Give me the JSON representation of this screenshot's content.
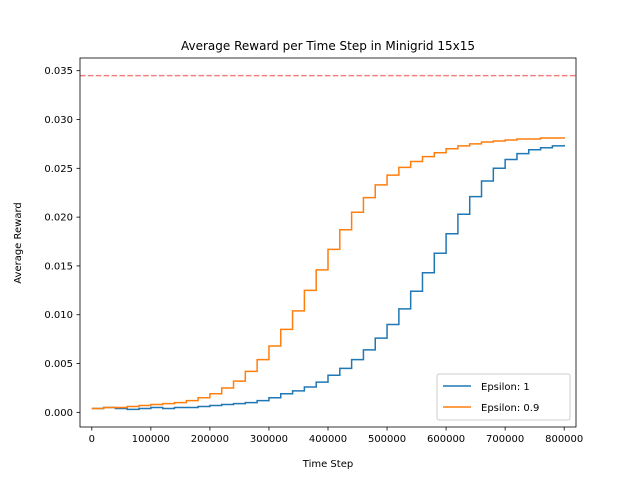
{
  "chart_data": {
    "type": "line",
    "title": "Average Reward per Time Step in Minigrid 15x15",
    "xlabel": "Time Step",
    "ylabel": "Average Reward",
    "xlim": [
      -20000,
      820000
    ],
    "ylim": [
      -0.0015,
      0.0363
    ],
    "x_ticks": [
      0,
      100000,
      200000,
      300000,
      400000,
      500000,
      600000,
      700000,
      800000
    ],
    "y_ticks": [
      0.0,
      0.005,
      0.01,
      0.015,
      0.02,
      0.025,
      0.03,
      0.035
    ],
    "y_tick_labels": [
      "0.000",
      "0.005",
      "0.010",
      "0.015",
      "0.020",
      "0.025",
      "0.030",
      "0.035"
    ],
    "grid": false,
    "legend_position": "lower-right",
    "reference_line": {
      "y": 0.0345,
      "color": "#f08080",
      "style": "dashed"
    },
    "series": [
      {
        "name": "Epsilon: 1",
        "color": "#1f77b4",
        "points": [
          [
            0,
            0.0004
          ],
          [
            20000,
            0.0005
          ],
          [
            40000,
            0.0004
          ],
          [
            60000,
            0.0003
          ],
          [
            80000,
            0.0004
          ],
          [
            100000,
            0.0005
          ],
          [
            120000,
            0.0004
          ],
          [
            140000,
            0.0005
          ],
          [
            160000,
            0.0005
          ],
          [
            180000,
            0.0006
          ],
          [
            200000,
            0.0007
          ],
          [
            220000,
            0.0008
          ],
          [
            240000,
            0.0009
          ],
          [
            260000,
            0.001
          ],
          [
            280000,
            0.0012
          ],
          [
            300000,
            0.0015
          ],
          [
            320000,
            0.0019
          ],
          [
            340000,
            0.0022
          ],
          [
            360000,
            0.0026
          ],
          [
            380000,
            0.0031
          ],
          [
            400000,
            0.0038
          ],
          [
            420000,
            0.0045
          ],
          [
            440000,
            0.0054
          ],
          [
            460000,
            0.0064
          ],
          [
            480000,
            0.0076
          ],
          [
            500000,
            0.009
          ],
          [
            520000,
            0.0106
          ],
          [
            540000,
            0.0124
          ],
          [
            560000,
            0.0143
          ],
          [
            580000,
            0.0163
          ],
          [
            600000,
            0.0183
          ],
          [
            620000,
            0.0203
          ],
          [
            640000,
            0.0221
          ],
          [
            660000,
            0.0237
          ],
          [
            680000,
            0.025
          ],
          [
            700000,
            0.0259
          ],
          [
            720000,
            0.0265
          ],
          [
            740000,
            0.0269
          ],
          [
            760000,
            0.0271
          ],
          [
            780000,
            0.0273
          ],
          [
            800000,
            0.0274
          ]
        ]
      },
      {
        "name": "Epsilon: 0.9",
        "color": "#ff7f0e",
        "points": [
          [
            0,
            0.0004
          ],
          [
            20000,
            0.0005
          ],
          [
            40000,
            0.0005
          ],
          [
            60000,
            0.0006
          ],
          [
            80000,
            0.0007
          ],
          [
            100000,
            0.0008
          ],
          [
            120000,
            0.0009
          ],
          [
            140000,
            0.001
          ],
          [
            160000,
            0.0012
          ],
          [
            180000,
            0.0015
          ],
          [
            200000,
            0.0019
          ],
          [
            220000,
            0.0025
          ],
          [
            240000,
            0.0032
          ],
          [
            260000,
            0.0042
          ],
          [
            280000,
            0.0054
          ],
          [
            300000,
            0.0068
          ],
          [
            320000,
            0.0085
          ],
          [
            340000,
            0.0104
          ],
          [
            360000,
            0.0125
          ],
          [
            380000,
            0.0146
          ],
          [
            400000,
            0.0167
          ],
          [
            420000,
            0.0187
          ],
          [
            440000,
            0.0205
          ],
          [
            460000,
            0.022
          ],
          [
            480000,
            0.0233
          ],
          [
            500000,
            0.0243
          ],
          [
            520000,
            0.0251
          ],
          [
            540000,
            0.0257
          ],
          [
            560000,
            0.0262
          ],
          [
            580000,
            0.0266
          ],
          [
            600000,
            0.027
          ],
          [
            620000,
            0.0273
          ],
          [
            640000,
            0.0275
          ],
          [
            660000,
            0.0277
          ],
          [
            680000,
            0.0278
          ],
          [
            700000,
            0.0279
          ],
          [
            720000,
            0.028
          ],
          [
            740000,
            0.028
          ],
          [
            760000,
            0.0281
          ],
          [
            780000,
            0.0281
          ],
          [
            800000,
            0.0282
          ]
        ]
      }
    ]
  }
}
